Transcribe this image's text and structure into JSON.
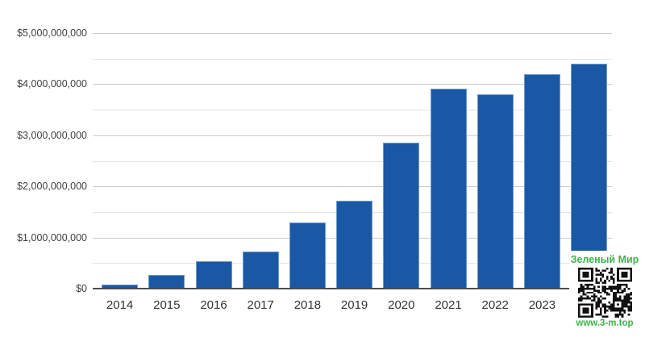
{
  "page": {
    "background_color": "#ffffff"
  },
  "chart_data": {
    "type": "bar",
    "title": "",
    "xlabel": "",
    "ylabel": "",
    "categories": [
      "2014",
      "2015",
      "2016",
      "2017",
      "2018",
      "2019",
      "2020",
      "2021",
      "2022",
      "2023",
      ""
    ],
    "values": [
      80000000,
      270000000,
      540000000,
      730000000,
      1300000000,
      1720000000,
      2850000000,
      3920000000,
      3800000000,
      4200000000,
      4400000000
    ],
    "ylim": [
      0,
      5000000000
    ],
    "y_ticks": [
      {
        "value": 0,
        "label": "$0"
      },
      {
        "value": 1000000000,
        "label": "$1,000,000,000"
      },
      {
        "value": 2000000000,
        "label": "$2,000,000,000"
      },
      {
        "value": 3000000000,
        "label": "$3,000,000,000"
      },
      {
        "value": 4000000000,
        "label": "$4,000,000,000"
      },
      {
        "value": 5000000000,
        "label": "$5,000,000,000"
      }
    ],
    "minor_grid_interval": 500000000,
    "grid": true,
    "legend_position": "none",
    "bar_color": "#1a58a6",
    "bar_edge_color": "#6e9ccd",
    "major_grid_color": "#cbcbcb",
    "minor_grid_color": "#e4e4e4",
    "axis_line_color": "#4d4d4d",
    "y_tick_label_color": "#404040",
    "x_tick_label_color": "#333333"
  },
  "watermark": {
    "title": "Зеленый Мир",
    "url": "www.3-m.top",
    "text_color": "#3ab54a",
    "qr_dark_color": "#111111",
    "qr_light_color": "#ffffff"
  }
}
